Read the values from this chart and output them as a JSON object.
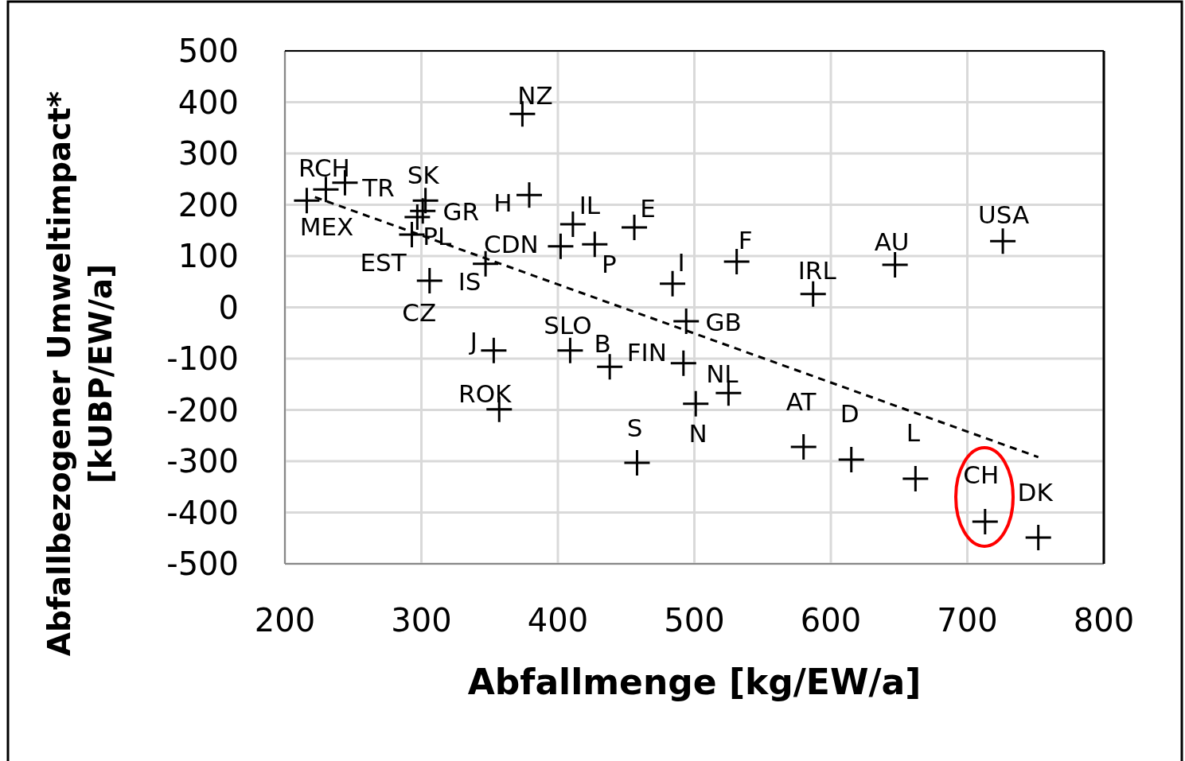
{
  "chart_data": {
    "type": "scatter",
    "xlabel": "Abfallmenge [kg/EW/a]",
    "ylabel": "Abfallbezogener Umweltimpact*\n[kUBP/EW/a]",
    "xlim": [
      200,
      800
    ],
    "xticks": [
      200,
      300,
      400,
      500,
      600,
      700,
      800
    ],
    "ylim": [
      -500,
      500
    ],
    "yticks": [
      -500,
      -400,
      -300,
      -200,
      -100,
      0,
      100,
      200,
      300,
      400,
      500
    ],
    "grid": true,
    "marker": "cross",
    "series": [
      {
        "color": "#000000",
        "x": [
          216,
          230,
          244,
          303,
          301,
          297,
          293,
          306,
          347,
          402,
          411,
          427,
          379,
          456,
          374,
          484,
          531,
          587,
          647,
          726,
          580,
          615,
          662,
          713,
          752,
          353,
          409,
          438,
          492,
          494,
          525,
          501,
          357,
          458
        ],
        "values": [
          208,
          230,
          243,
          208,
          188,
          176,
          142,
          52,
          85,
          119,
          162,
          123,
          219,
          156,
          377,
          46,
          89,
          26,
          83,
          129,
          -272,
          -297,
          -334,
          -418,
          -449,
          -84,
          -84,
          -116,
          -109,
          -27,
          -167,
          -188,
          -199,
          -303
        ]
      },
      {
        "type": "line",
        "color": "#000000",
        "line_style": "dashed",
        "marker": "none",
        "x": [
          222,
          752
        ],
        "values": [
          215,
          -292
        ]
      }
    ],
    "annotations": [
      {
        "text": "MEX",
        "x": 216,
        "y": 208
      },
      {
        "text": "RCH",
        "x": 230,
        "y": 230
      },
      {
        "text": "TR",
        "x": 244,
        "y": 243
      },
      {
        "text": "SK",
        "x": 303,
        "y": 208
      },
      {
        "text": "GR",
        "x": 301,
        "y": 188
      },
      {
        "text": "PL",
        "x": 297,
        "y": 176
      },
      {
        "text": "EST",
        "x": 293,
        "y": 142
      },
      {
        "text": "CZ",
        "x": 306,
        "y": 52
      },
      {
        "text": "IS",
        "x": 347,
        "y": 85
      },
      {
        "text": "CDN",
        "x": 402,
        "y": 119
      },
      {
        "text": "IL",
        "x": 411,
        "y": 162
      },
      {
        "text": "P",
        "x": 427,
        "y": 123
      },
      {
        "text": "H",
        "x": 379,
        "y": 219
      },
      {
        "text": "E",
        "x": 456,
        "y": 156
      },
      {
        "text": "NZ",
        "x": 374,
        "y": 377
      },
      {
        "text": "I",
        "x": 484,
        "y": 46
      },
      {
        "text": "F",
        "x": 531,
        "y": 89
      },
      {
        "text": "IRL",
        "x": 587,
        "y": 26
      },
      {
        "text": "AU",
        "x": 647,
        "y": 83
      },
      {
        "text": "USA",
        "x": 726,
        "y": 129
      },
      {
        "text": "AT",
        "x": 580,
        "y": -272
      },
      {
        "text": "D",
        "x": 615,
        "y": -297
      },
      {
        "text": "L",
        "x": 662,
        "y": -334
      },
      {
        "text": "CH",
        "x": 713,
        "y": -418
      },
      {
        "text": "DK",
        "x": 752,
        "y": -449
      },
      {
        "text": "J",
        "x": 353,
        "y": -84
      },
      {
        "text": "SLO",
        "x": 409,
        "y": -84
      },
      {
        "text": "B",
        "x": 438,
        "y": -116
      },
      {
        "text": "FIN",
        "x": 492,
        "y": -109
      },
      {
        "text": "GB",
        "x": 494,
        "y": -27
      },
      {
        "text": "NL",
        "x": 525,
        "y": -167
      },
      {
        "text": "N",
        "x": 501,
        "y": -188
      },
      {
        "text": "ROK",
        "x": 357,
        "y": -199
      },
      {
        "text": "S",
        "x": 458,
        "y": -303
      }
    ]
  }
}
